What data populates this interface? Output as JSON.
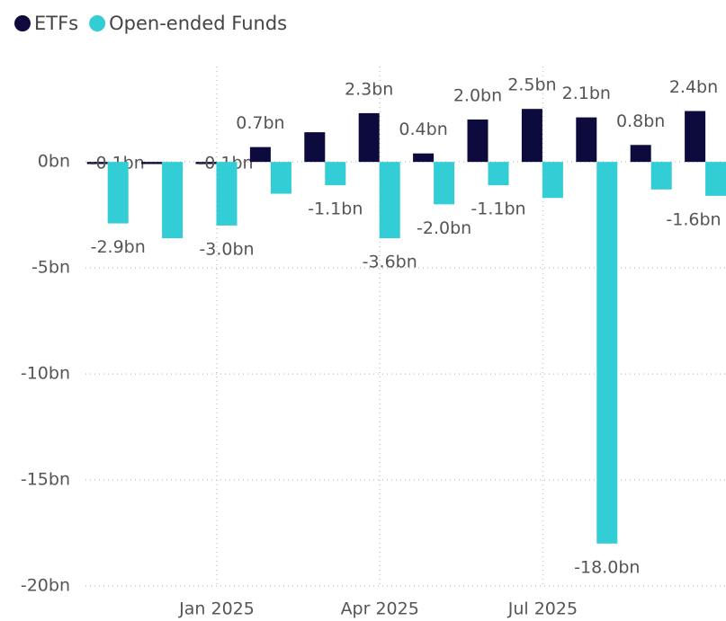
{
  "chart_data": {
    "type": "bar",
    "categories": [
      null,
      null,
      "Jan 2025",
      null,
      null,
      "Apr 2025",
      null,
      null,
      "Jul 2025",
      null,
      null,
      null
    ],
    "series": [
      {
        "name": "ETFs",
        "color": "#0d0b3d",
        "values": [
          -0.1,
          -0.1,
          -0.1,
          0.7,
          1.4,
          2.3,
          0.4,
          2.0,
          2.5,
          2.1,
          0.8,
          2.4
        ],
        "value_labels": [
          "-0.1bn",
          null,
          "-0.1bn",
          "0.7bn",
          null,
          "2.3bn",
          "0.4bn",
          "2.0bn",
          "2.5bn",
          "2.1bn",
          "0.8bn",
          "2.4bn"
        ]
      },
      {
        "name": "Open-ended Funds",
        "color": "#33cdd5",
        "values": [
          -2.9,
          -3.6,
          -3.0,
          -1.5,
          -1.1,
          -3.6,
          -2.0,
          -1.1,
          -1.7,
          -18.0,
          -1.3,
          -1.6
        ],
        "value_labels": [
          "-2.9bn",
          null,
          "-3.0bn",
          null,
          "-1.1bn",
          "-3.6bn",
          "-2.0bn",
          "-1.1bn",
          null,
          "-18.0bn",
          null,
          "-1.6bn"
        ]
      }
    ],
    "ylim": [
      -20,
      4.5
    ],
    "yticks": [
      {
        "value": 0,
        "label": "0bn"
      },
      {
        "value": -5,
        "label": "-5bn"
      },
      {
        "value": -10,
        "label": "-10bn"
      },
      {
        "value": -15,
        "label": "-15bn"
      },
      {
        "value": -20,
        "label": "-20bn"
      }
    ],
    "grid": true,
    "legend": "top-left"
  }
}
